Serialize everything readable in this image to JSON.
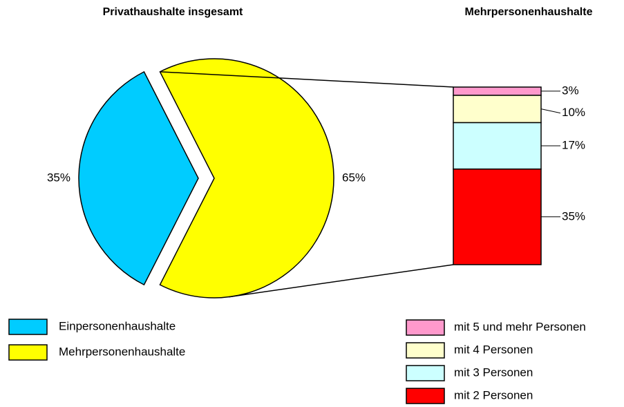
{
  "chart_data": [
    {
      "type": "pie",
      "title": "Privathaushalte insgesamt",
      "categories": [
        "Einpersonenhaushalte",
        "Mehrpersonenhaushalte"
      ],
      "values": [
        35,
        65
      ],
      "value_labels": [
        "35%",
        "65%"
      ],
      "colors": [
        "#00ccff",
        "#ffff00"
      ]
    },
    {
      "type": "stacked-bar",
      "title": "Mehrpersonenhaushalte",
      "series": [
        {
          "name": "mit 5 und mehr Personen",
          "color": "#ff99cc",
          "values": [
            3
          ],
          "value_labels": [
            "3%"
          ]
        },
        {
          "name": "mit 4 Personen",
          "color": "#ffffcc",
          "values": [
            10
          ],
          "value_labels": [
            "10%"
          ]
        },
        {
          "name": "mit 3 Personen",
          "color": "#ccffff",
          "values": [
            17
          ],
          "value_labels": [
            "17%"
          ]
        },
        {
          "name": "mit 2 Personen",
          "color": "#ff0000",
          "values": [
            35
          ],
          "value_labels": [
            "35%"
          ]
        }
      ]
    }
  ]
}
